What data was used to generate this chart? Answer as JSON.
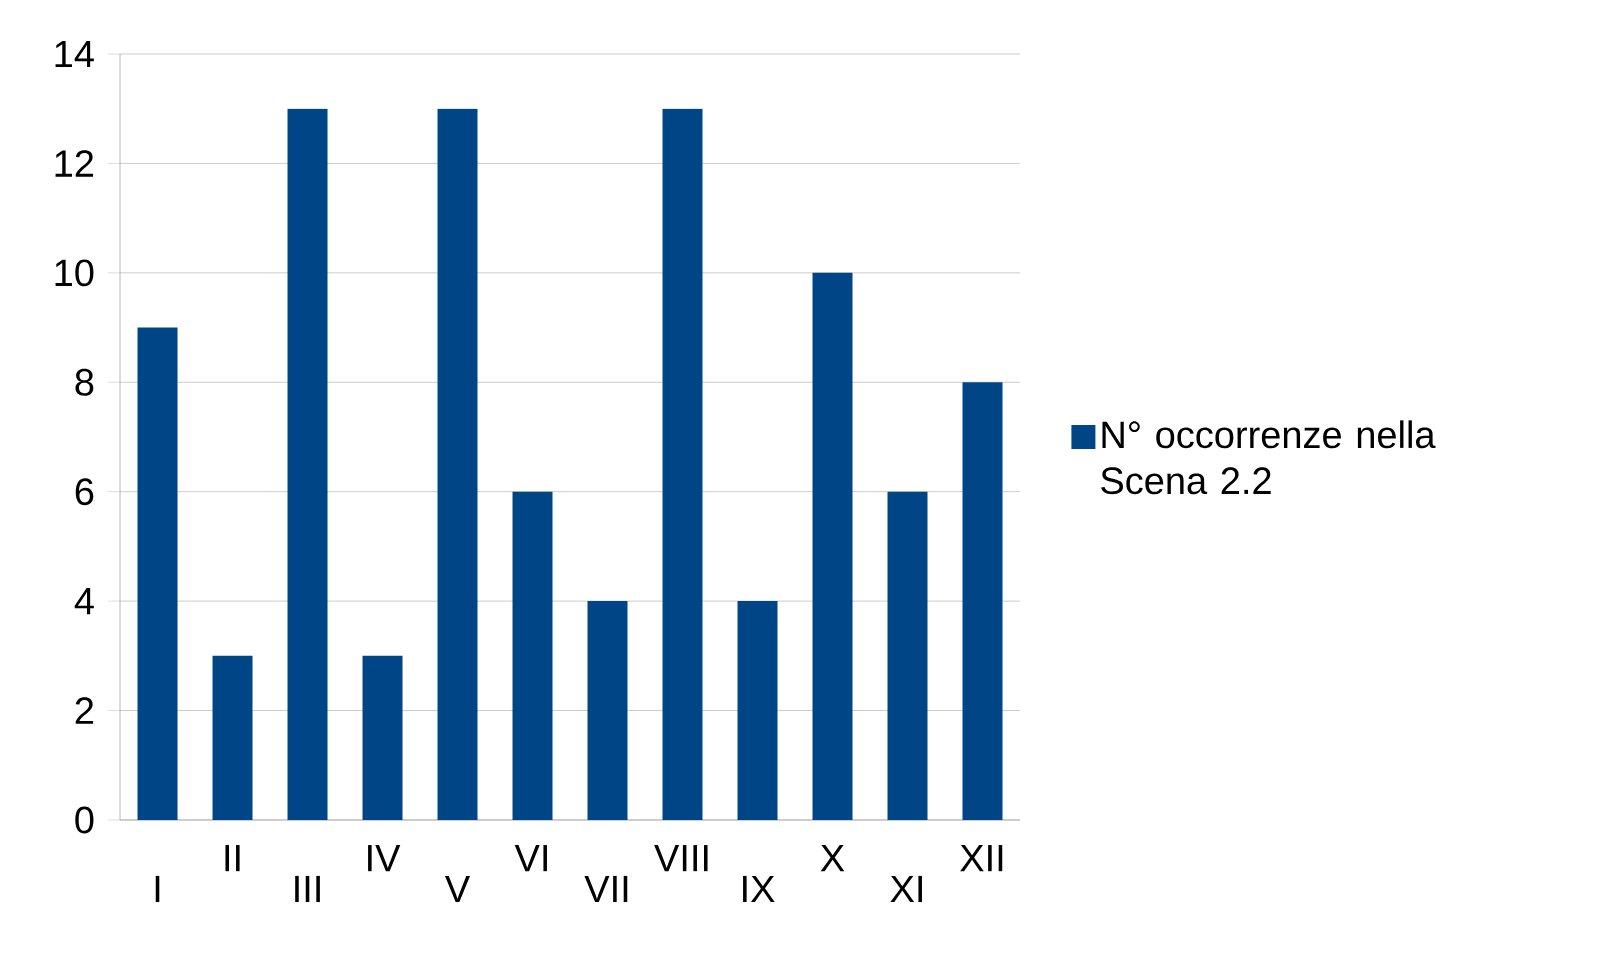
{
  "chart_data": {
    "type": "bar",
    "categories": [
      "I",
      "II",
      "III",
      "IV",
      "V",
      "VI",
      "VII",
      "VIII",
      "IX",
      "X",
      "XI",
      "XII"
    ],
    "series": [
      {
        "name": "N° occorrenze nella Scena 2.2",
        "color": "#004586",
        "values": [
          9,
          3,
          13,
          3,
          13,
          6,
          4,
          13,
          4,
          10,
          6,
          8
        ]
      }
    ],
    "ylim": [
      0,
      14
    ],
    "yticks": [
      0,
      2,
      4,
      6,
      8,
      10,
      12,
      14
    ],
    "grid": "y",
    "legend": "right"
  }
}
